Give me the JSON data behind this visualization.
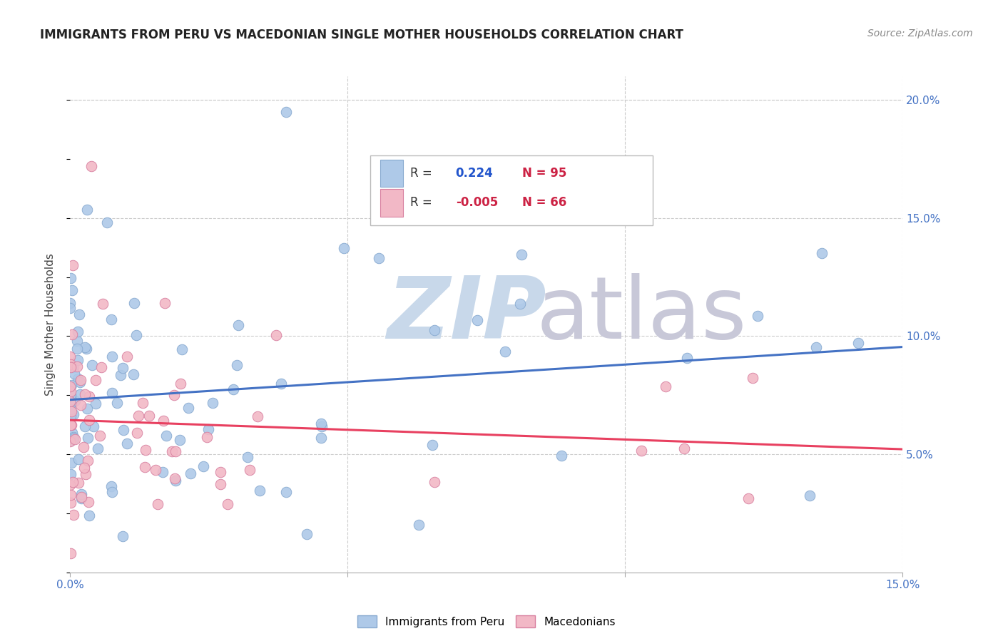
{
  "title": "IMMIGRANTS FROM PERU VS MACEDONIAN SINGLE MOTHER HOUSEHOLDS CORRELATION CHART",
  "source": "Source: ZipAtlas.com",
  "ylabel": "Single Mother Households",
  "xlim": [
    0.0,
    0.15
  ],
  "ylim": [
    0.0,
    0.21
  ],
  "xtick_positions": [
    0.0,
    0.05,
    0.1,
    0.15
  ],
  "xtick_labels": [
    "0.0%",
    "",
    "",
    "15.0%"
  ],
  "ytick_positions": [
    0.05,
    0.1,
    0.15,
    0.2
  ],
  "ytick_labels": [
    "5.0%",
    "10.0%",
    "15.0%",
    "20.0%"
  ],
  "legend_series1_label": "Immigrants from Peru",
  "legend_series2_label": "Macedonians",
  "legend_R1": "0.224",
  "legend_N1": "95",
  "legend_R2": "-0.005",
  "legend_N2": "66",
  "series1_color": "#aec9e8",
  "series1_edge": "#88aad0",
  "series2_color": "#f2b8c6",
  "series2_edge": "#d880a0",
  "trendline1_color": "#4472c4",
  "trendline2_color": "#e84060",
  "R1_color": "#2255cc",
  "R2_color": "#cc2244",
  "N_color": "#cc2244",
  "background_color": "#ffffff",
  "grid_color": "#cccccc",
  "watermark_zip_color": "#c8d8ea",
  "watermark_atlas_color": "#c8c8d8",
  "title_color": "#222222",
  "source_color": "#888888",
  "ylabel_color": "#444444",
  "tick_color": "#4472c4"
}
